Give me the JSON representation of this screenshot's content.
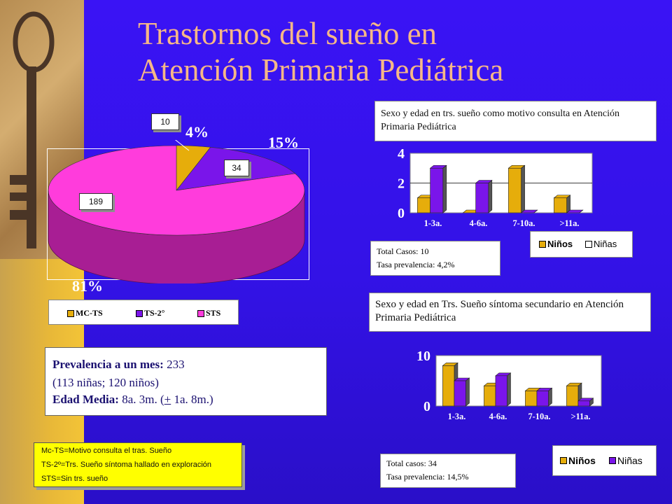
{
  "title": {
    "line1": "Trastornos del sueño en",
    "line2": "Atención Primaria Pediátrica"
  },
  "colors": {
    "background": "#3311e6",
    "title": "#f6b787",
    "yellow_series": "#e6ad0b",
    "purple_series": "#7a15ea",
    "pink": "#ff3cdc",
    "note_box": "#ffff00"
  },
  "pie": {
    "callout_mc": "10",
    "callout_ts2": "34",
    "callout_sts": "189",
    "pct_mc": "4%",
    "pct_ts2": "15%",
    "pct_sts": "81%",
    "legend": [
      "MC-TS",
      "TS-2°",
      "STS"
    ]
  },
  "prevalence": {
    "label1": "Prevalencia a un mes:",
    "value1": " 233",
    "line2": "(113 niñas; 120 niños)",
    "label3": "Edad Media:",
    "value3_pre": " 8a. 3m. (",
    "value3_pm": "+",
    "value3_post": " 1a. 8m.)"
  },
  "notes": [
    "Mc-TS=Motivo consulta el tras. Sueño",
    "TS-2º=Trs. Sueño síntoma hallado en exploración",
    "STS=Sin trs. sueño"
  ],
  "chart1_box": {
    "title": "Sexo y edad en trs. sueño como motivo consulta en Atención Primaria Pediátrica",
    "total": "Total Casos: 10",
    "rate": "Tasa prevalencia:  4,2%"
  },
  "chart2_box": {
    "title": "Sexo y edad en Trs. Sueño síntoma secundario en Atención Primaria Pediátrica",
    "total": "Total casos: 34",
    "rate": "Tasa prevalencia:  14,5%"
  },
  "chart_data": [
    {
      "type": "pie",
      "categories": [
        "MC-TS",
        "TS-2°",
        "STS"
      ],
      "values": [
        10,
        34,
        189
      ],
      "labels": [
        "4%",
        "15%",
        "81%"
      ],
      "legend": "bottom"
    },
    {
      "type": "bar",
      "title": "Sexo y edad en trs. sueño como motivo consulta en Atención Primaria Pediátrica",
      "categories": [
        "1-3a.",
        "4-6a.",
        "7-10a.",
        ">11a."
      ],
      "series": [
        {
          "name": "Niños",
          "values": [
            1,
            0,
            3,
            1
          ]
        },
        {
          "name": "Niñas",
          "values": [
            3,
            2,
            0,
            0
          ]
        }
      ],
      "yticks": [
        "0",
        "2",
        "4"
      ],
      "ylim": [
        0,
        4
      ],
      "legend_labels": [
        "Niños",
        "Niñas"
      ],
      "legend": "bottom-right"
    },
    {
      "type": "bar",
      "title": "Sexo y edad en Trs. Sueño síntoma secundario en Atención Primaria Pediátrica",
      "categories": [
        "1-3a.",
        "4-6a.",
        "7-10a.",
        ">11a."
      ],
      "series": [
        {
          "name": "Niños",
          "values": [
            8,
            4,
            3,
            4
          ]
        },
        {
          "name": "Niñas",
          "values": [
            5,
            6,
            3,
            1
          ]
        }
      ],
      "yticks": [
        "0",
        "10"
      ],
      "ylim": [
        0,
        10
      ],
      "legend_labels": [
        "Niños",
        "Niñas"
      ],
      "legend": "bottom-right"
    }
  ]
}
